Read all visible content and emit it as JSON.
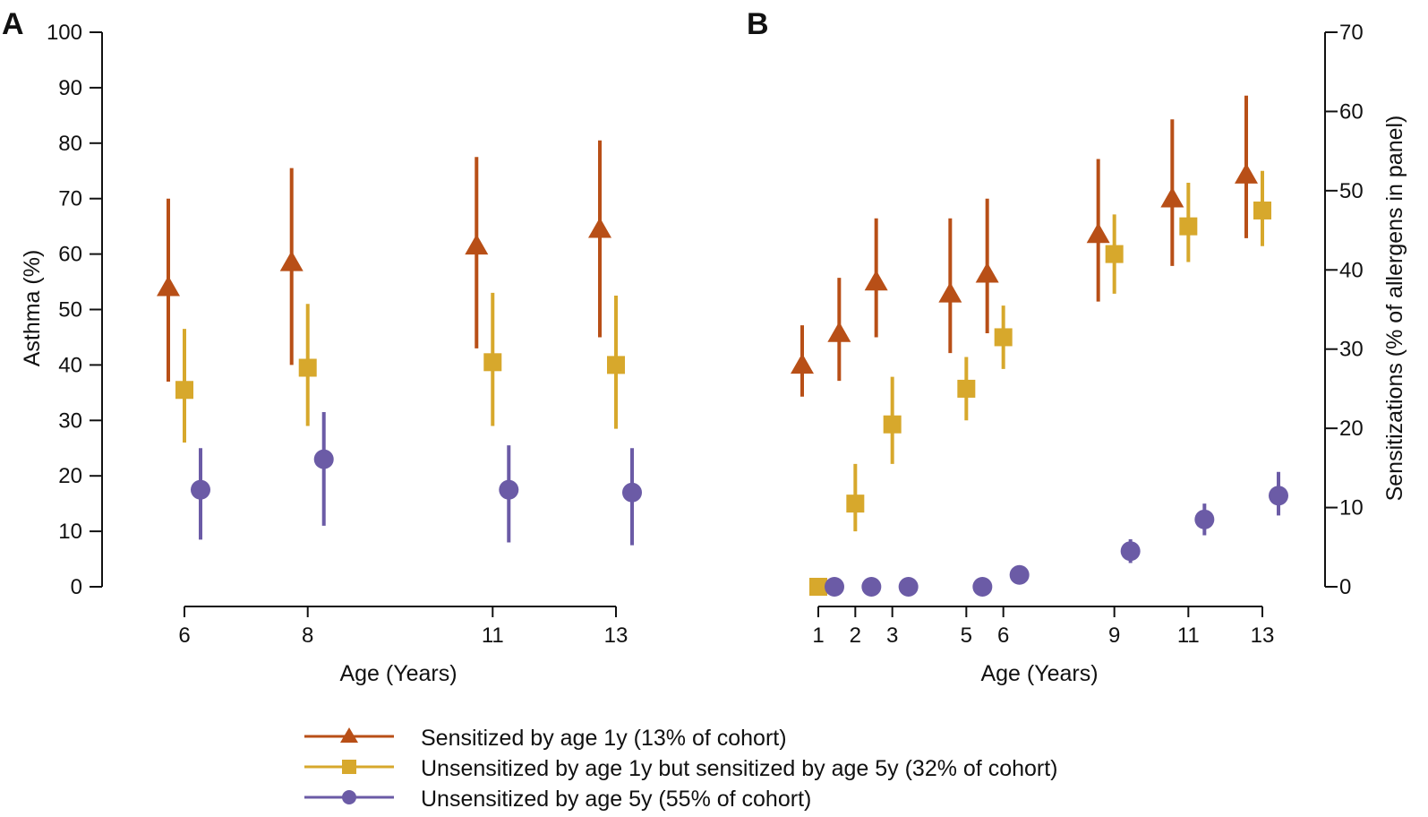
{
  "colors": {
    "sensitized_1y": "#B84F17",
    "sensitized_5y": "#D7A82C",
    "unsensitized_5y": "#6B5BA6"
  },
  "legend": [
    {
      "label": "Sensitized by age 1y (13% of cohort)",
      "marker": "triangle",
      "color_key": "sensitized_1y"
    },
    {
      "label": "Unsensitized by age 1y but sensitized by age 5y (32% of cohort)",
      "marker": "square",
      "color_key": "sensitized_5y"
    },
    {
      "label": "Unsensitized by age 5y (55% of cohort)",
      "marker": "circle",
      "color_key": "unsensitized_5y"
    }
  ],
  "chart_data": [
    {
      "panel": "A",
      "type": "scatter",
      "xlabel": "Age (Years)",
      "ylabel": "Asthma (%)",
      "ylim": [
        0,
        100
      ],
      "yticks": [
        0,
        10,
        20,
        30,
        40,
        50,
        60,
        70,
        80,
        90,
        100
      ],
      "x": [
        6,
        8,
        11,
        13
      ],
      "xticks": [
        6,
        8,
        11,
        13
      ],
      "series": [
        {
          "color_key": "sensitized_1y",
          "marker": "triangle",
          "values": [
            54,
            58.5,
            61.5,
            64.5
          ],
          "ci_low": [
            37,
            40,
            43,
            45
          ],
          "ci_high": [
            70,
            75.5,
            77.5,
            80.5
          ]
        },
        {
          "color_key": "sensitized_5y",
          "marker": "square",
          "values": [
            35.5,
            39.5,
            40.5,
            40
          ],
          "ci_low": [
            26,
            29,
            29,
            28.5
          ],
          "ci_high": [
            46.5,
            51,
            53,
            52.5
          ]
        },
        {
          "color_key": "unsensitized_5y",
          "marker": "circle",
          "values": [
            17.5,
            23,
            17.5,
            17
          ],
          "ci_low": [
            8.5,
            11,
            8,
            7.5
          ],
          "ci_high": [
            25,
            31.5,
            25.5,
            25
          ]
        }
      ]
    },
    {
      "panel": "B",
      "type": "scatter",
      "xlabel": "Age (Years)",
      "ylabel": "Sensitizations (% of allergens in panel)",
      "ylim": [
        0,
        70
      ],
      "yticks": [
        0,
        10,
        20,
        30,
        40,
        50,
        60,
        70
      ],
      "x": [
        1,
        2,
        3,
        5,
        6,
        9,
        11,
        13
      ],
      "xticks": [
        1,
        2,
        3,
        5,
        6,
        9,
        11,
        13
      ],
      "series": [
        {
          "color_key": "sensitized_1y",
          "marker": "triangle",
          "values": [
            28,
            32,
            38.5,
            37,
            39.5,
            44.5,
            49,
            52
          ],
          "ci_low": [
            24,
            26,
            31.5,
            29.5,
            32,
            36,
            40.5,
            44
          ],
          "ci_high": [
            33,
            39,
            46.5,
            46.5,
            49,
            54,
            59,
            62
          ]
        },
        {
          "color_key": "sensitized_5y",
          "marker": "square",
          "values": [
            0,
            10.5,
            20.5,
            25,
            31.5,
            42,
            45.5,
            47.5
          ],
          "ci_low": [
            0,
            7,
            15.5,
            21,
            27.5,
            37,
            41,
            43
          ],
          "ci_high": [
            0,
            15.5,
            26.5,
            29,
            35.5,
            47,
            51,
            52.5
          ]
        },
        {
          "color_key": "unsensitized_5y",
          "marker": "circle",
          "values": [
            0,
            0,
            0,
            0,
            1.5,
            4.5,
            8.5,
            11.5
          ],
          "ci_low": [
            0,
            0,
            0,
            0,
            0.5,
            3,
            6.5,
            9
          ],
          "ci_high": [
            0,
            0,
            0,
            0,
            2.5,
            6,
            10.5,
            14.5
          ]
        }
      ]
    }
  ]
}
